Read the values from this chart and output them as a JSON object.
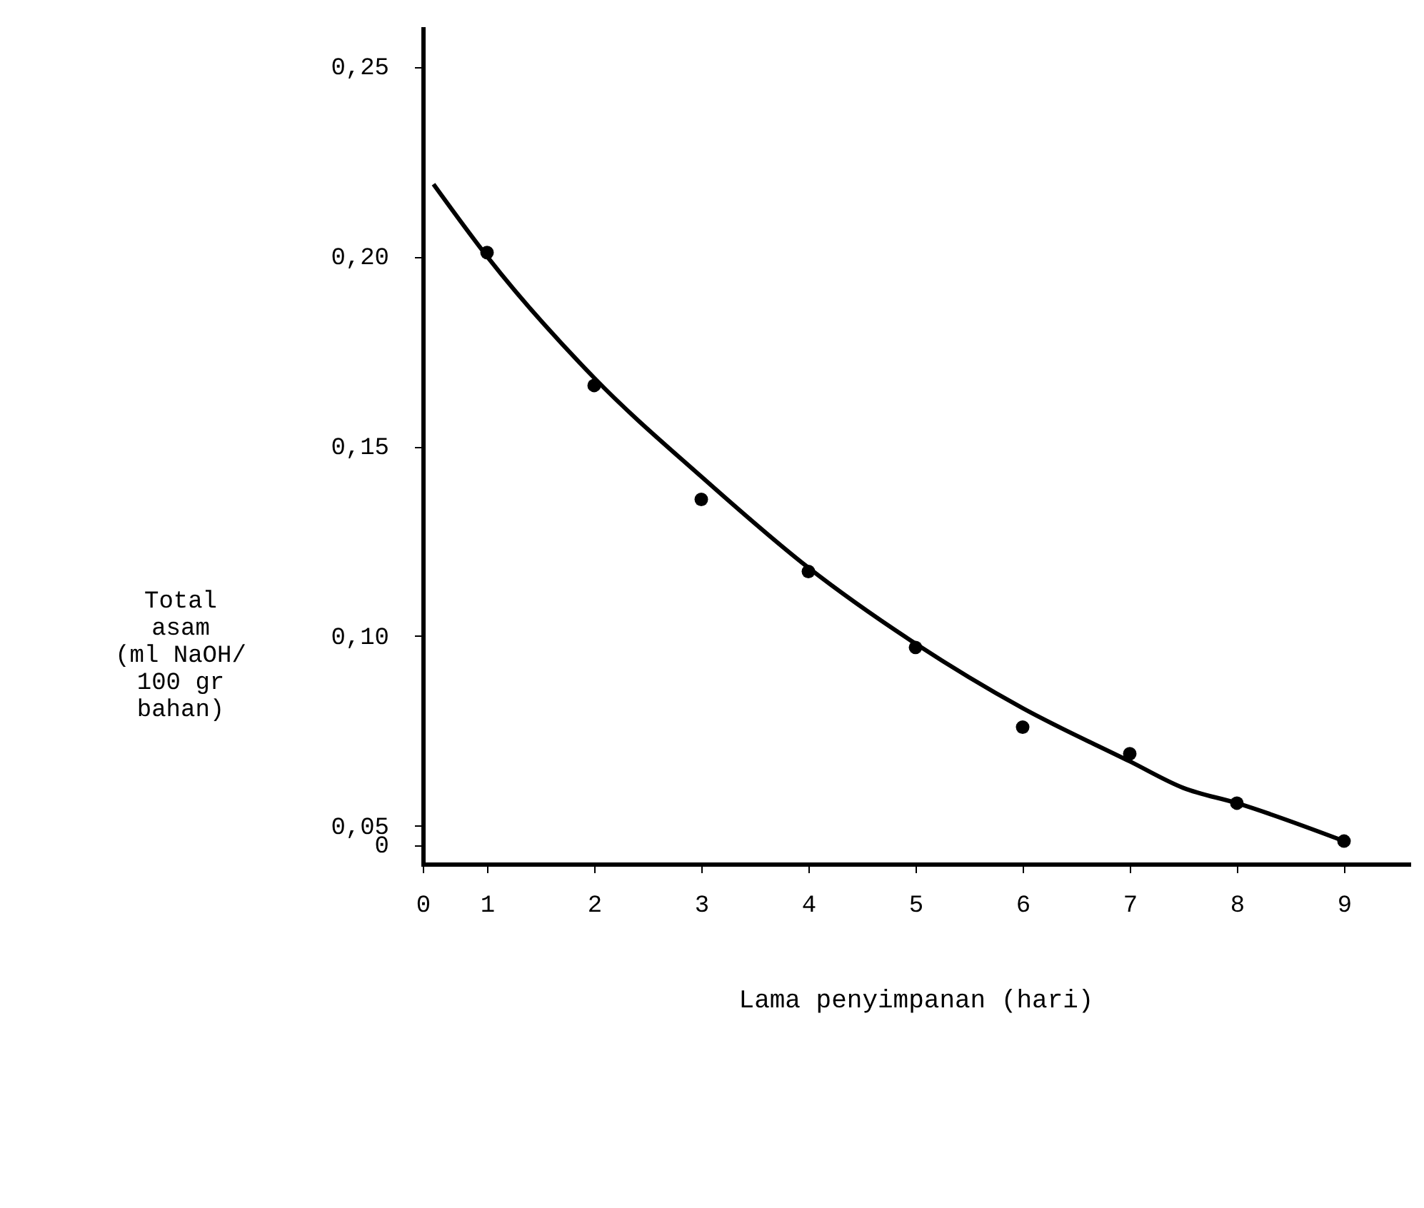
{
  "chart_data": {
    "type": "scatter",
    "xlabel": "Lama penyimpanan (hari)",
    "ylabel": "Total\nasam\n(ml NaOH/\n100 gr\nbahan)",
    "marker": "circle",
    "grid": false,
    "xlim": [
      0.4,
      9.6
    ],
    "xticks": [
      {
        "value": 0.4,
        "label": "0"
      },
      1,
      2,
      3,
      4,
      5,
      6,
      7,
      8,
      9
    ],
    "ylim": [
      0.04,
      0.26
    ],
    "yticks": [
      {
        "value": 0.045,
        "label": "0"
      },
      {
        "value": 0.05,
        "label": "0,05"
      },
      {
        "value": 0.1,
        "label": "0,10"
      },
      {
        "value": 0.15,
        "label": "0,15"
      },
      {
        "value": 0.2,
        "label": "0,20"
      },
      {
        "value": 0.25,
        "label": "0,25"
      }
    ],
    "series": [
      {
        "color": "#000000",
        "x": [
          1,
          2,
          3,
          4,
          5,
          6,
          7,
          8,
          9
        ],
        "values": [
          0.201,
          0.166,
          0.136,
          0.117,
          0.097,
          0.076,
          0.069,
          0.056,
          0.046
        ]
      },
      {
        "type": "line",
        "color": "#000000",
        "marker": "none",
        "x": [
          0.5,
          1,
          2,
          3,
          4,
          5,
          6,
          7,
          7.5,
          8,
          9
        ],
        "values": [
          0.219,
          0.2,
          0.168,
          0.142,
          0.118,
          0.098,
          0.081,
          0.067,
          0.06,
          0.056,
          0.046
        ]
      }
    ]
  }
}
